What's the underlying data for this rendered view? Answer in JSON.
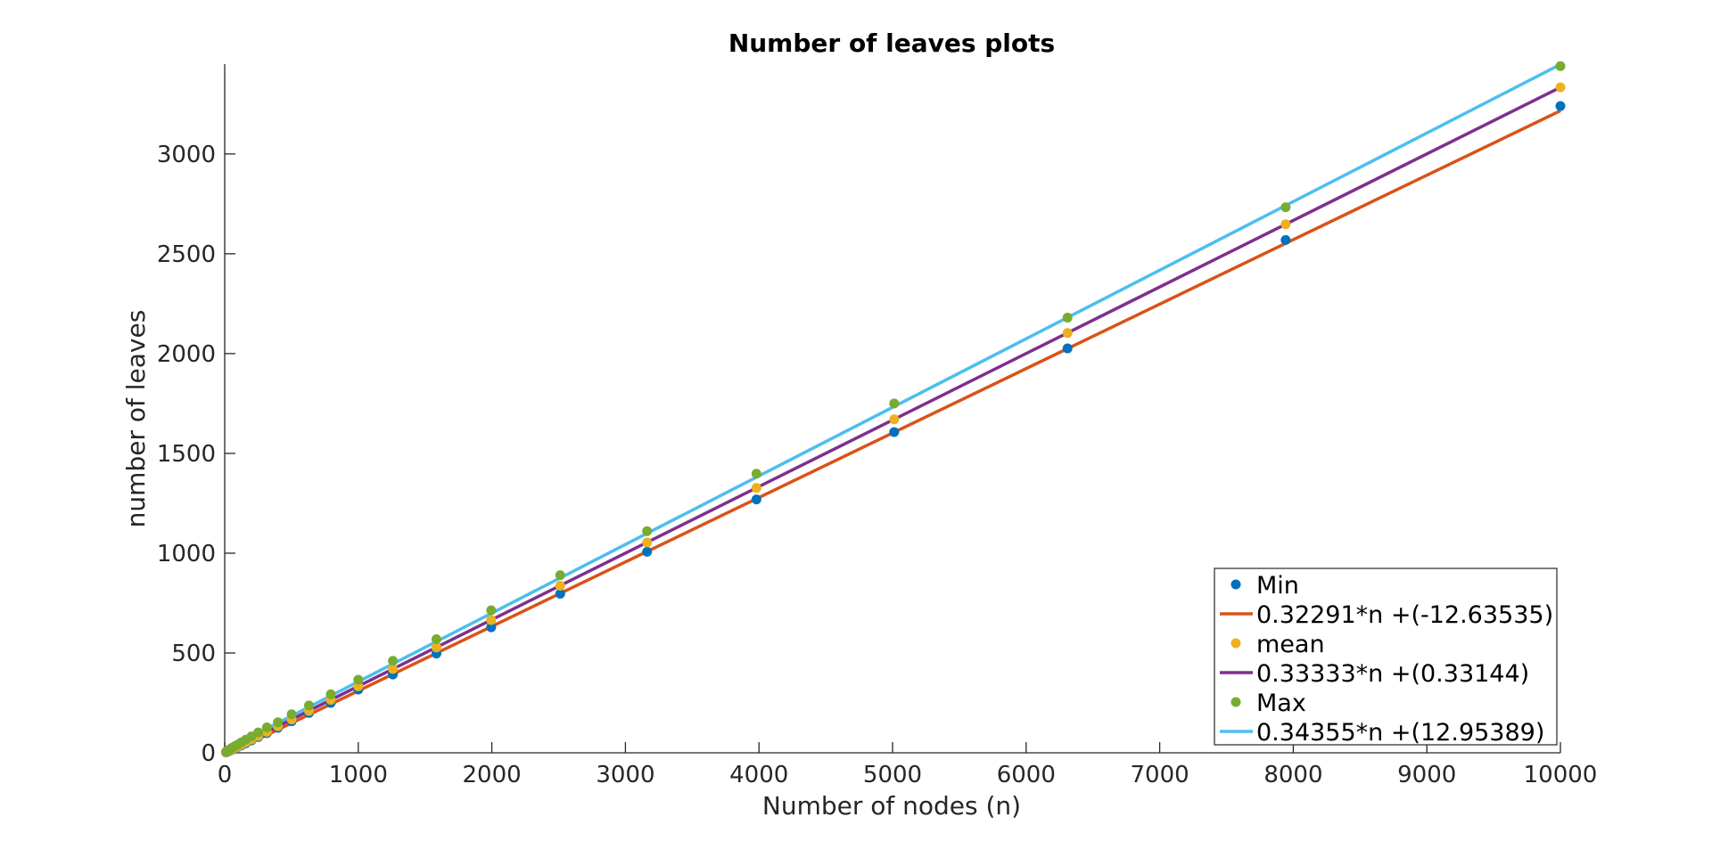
{
  "chart_data": {
    "type": "scatter",
    "title": "Number of leaves plots",
    "xlabel": "Number of nodes (n)",
    "ylabel": "number of leaves",
    "xlim": [
      0,
      10000
    ],
    "ylim": [
      0,
      3450
    ],
    "xticks": [
      0,
      1000,
      2000,
      3000,
      4000,
      5000,
      6000,
      7000,
      8000,
      9000,
      10000
    ],
    "xtick_labels": [
      "0",
      "1000",
      "2000",
      "3000",
      "4000",
      "5000",
      "6000",
      "7000",
      "8000",
      "9000",
      "10000"
    ],
    "yticks": [
      0,
      500,
      1000,
      1500,
      2000,
      2500,
      3000
    ],
    "ytick_labels": [
      "0",
      "500",
      "1000",
      "1500",
      "2000",
      "2500",
      "3000"
    ],
    "grid": false,
    "legend_position": "bottom-right",
    "x": [
      10,
      13,
      16,
      20,
      25,
      32,
      40,
      50,
      63,
      79,
      100,
      126,
      158,
      200,
      251,
      316,
      398,
      501,
      631,
      794,
      1000,
      1259,
      1585,
      1995,
      2512,
      3162,
      3981,
      5012,
      6310,
      7943,
      10000
    ],
    "series": [
      {
        "name": "Min",
        "kind": "points",
        "color": "#0072BD",
        "values": [
          2,
          3,
          4,
          5,
          6,
          9,
          11,
          14,
          18,
          23,
          30,
          38,
          48,
          62,
          79,
          99,
          125,
          158,
          200,
          250,
          317,
          392,
          497,
          629,
          797,
          1007,
          1269,
          1607,
          2026,
          2569,
          3240
        ]
      },
      {
        "name": "0.32291*n +(-12.63535)",
        "kind": "line",
        "color": "#D95319",
        "slope": 0.32291,
        "intercept": -12.63535
      },
      {
        "name": "mean",
        "kind": "points",
        "color": "#EDB120",
        "values": [
          3,
          4,
          5,
          7,
          8,
          11,
          13,
          17,
          21,
          26,
          33,
          42,
          53,
          67,
          84,
          105,
          133,
          167,
          210,
          265,
          333,
          420,
          528,
          665,
          837,
          1054,
          1327,
          1671,
          2103,
          2648,
          3334
        ]
      },
      {
        "name": "0.33333*n +(0.33144)",
        "kind": "line",
        "color": "#7E2F8E",
        "slope": 0.33333,
        "intercept": 0.33144
      },
      {
        "name": "Max",
        "kind": "points",
        "color": "#77AC30",
        "values": [
          5,
          6,
          8,
          10,
          12,
          15,
          18,
          23,
          28,
          34,
          42,
          53,
          66,
          82,
          102,
          127,
          153,
          193,
          237,
          293,
          366,
          461,
          569,
          714,
          890,
          1110,
          1398,
          1750,
          2180,
          2733,
          3440
        ]
      },
      {
        "name": "0.34355*n +(12.95389)",
        "kind": "line",
        "color": "#4DBEEE",
        "slope": 0.34355,
        "intercept": 12.95389
      }
    ]
  }
}
